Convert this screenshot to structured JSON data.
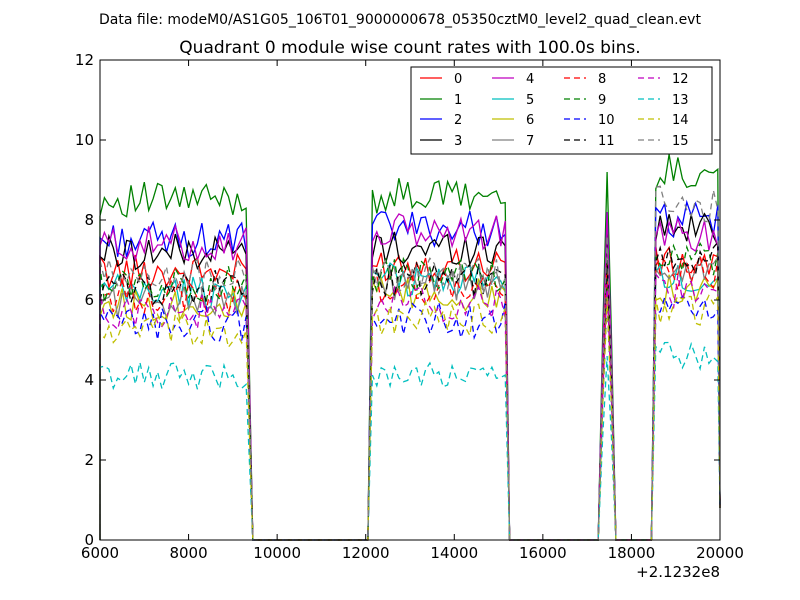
{
  "header": {
    "data_file": "Data file: modeM0/AS1G05_106T01_9000000678_05350cztM0_level2_quad_clean.evt"
  },
  "chart_data": {
    "type": "line",
    "title": "Quadrant 0 module wise count rates with 100.0s bins.",
    "xlabel": "",
    "ylabel": "",
    "x_offset_label": "+2.1232e8",
    "xlim": [
      6000,
      20000
    ],
    "ylim": [
      0,
      12
    ],
    "x_ticks": [
      "6000",
      "8000",
      "10000",
      "12000",
      "14000",
      "16000",
      "18000",
      "20000"
    ],
    "y_ticks": [
      "0",
      "2",
      "4",
      "6",
      "8",
      "10",
      "12"
    ],
    "grid": false,
    "legend": {
      "placement": "top-right",
      "columns": 4
    },
    "segments": [
      {
        "start": 6000,
        "end": 9350
      },
      {
        "start": 12150,
        "end": 15150
      },
      {
        "start": 17350,
        "end": 17550
      },
      {
        "start": 18550,
        "end": 20000
      }
    ],
    "series": [
      {
        "name": "0",
        "color": "#ff0000",
        "dash": "solid",
        "levels": [
          6.7,
          6.9,
          8.0,
          6.9
        ]
      },
      {
        "name": "1",
        "color": "#008000",
        "dash": "solid",
        "levels": [
          8.5,
          8.6,
          9.2,
          9.2
        ]
      },
      {
        "name": "2",
        "color": "#0000ff",
        "dash": "solid",
        "levels": [
          7.5,
          7.8,
          8.2,
          8.0
        ]
      },
      {
        "name": "3",
        "color": "#000000",
        "dash": "solid",
        "levels": [
          7.2,
          7.3,
          7.8,
          7.8
        ]
      },
      {
        "name": "4",
        "color": "#bf00bf",
        "dash": "solid",
        "levels": [
          7.4,
          7.7,
          8.2,
          7.6
        ]
      },
      {
        "name": "5",
        "color": "#00bfbf",
        "dash": "solid",
        "levels": [
          6.2,
          6.5,
          7.0,
          6.5
        ]
      },
      {
        "name": "6",
        "color": "#bfbf00",
        "dash": "solid",
        "levels": [
          5.9,
          6.1,
          6.6,
          6.3
        ]
      },
      {
        "name": "7",
        "color": "#808080",
        "dash": "solid",
        "levels": [
          6.0,
          6.4,
          7.0,
          6.8
        ]
      },
      {
        "name": "8",
        "color": "#ff0000",
        "dash": "dashed",
        "levels": [
          6.1,
          6.3,
          7.0,
          6.7
        ]
      },
      {
        "name": "9",
        "color": "#008000",
        "dash": "dashed",
        "levels": [
          6.4,
          6.6,
          7.0,
          7.0
        ]
      },
      {
        "name": "10",
        "color": "#0000ff",
        "dash": "dashed",
        "levels": [
          5.4,
          5.5,
          6.0,
          5.8
        ]
      },
      {
        "name": "11",
        "color": "#000000",
        "dash": "dashed",
        "levels": [
          6.3,
          6.5,
          7.0,
          7.0
        ]
      },
      {
        "name": "12",
        "color": "#bf00bf",
        "dash": "dashed",
        "levels": [
          5.7,
          5.9,
          6.4,
          6.2
        ]
      },
      {
        "name": "13",
        "color": "#00bfbf",
        "dash": "dashed",
        "levels": [
          4.1,
          4.1,
          4.6,
          4.6
        ]
      },
      {
        "name": "14",
        "color": "#bfbf00",
        "dash": "dashed",
        "levels": [
          5.2,
          5.5,
          6.0,
          5.8
        ]
      },
      {
        "name": "15",
        "color": "#808080",
        "dash": "dashed",
        "levels": [
          6.6,
          6.6,
          7.6,
          8.4
        ]
      }
    ]
  }
}
